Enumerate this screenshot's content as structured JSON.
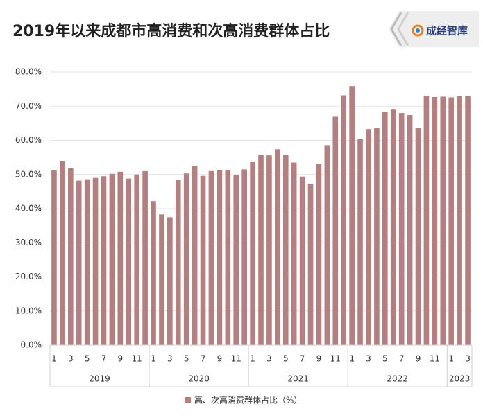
{
  "brand": "成经智库",
  "chart_data": {
    "type": "bar",
    "title": "2019年以来成都市高消费和次高消费群体占比",
    "categories": [
      "1",
      null,
      "3",
      null,
      "5",
      null,
      "7",
      null,
      "9",
      null,
      "11",
      null,
      "1",
      null,
      "3",
      null,
      "5",
      null,
      "7",
      null,
      "9",
      null,
      "11",
      null,
      "1",
      null,
      "3",
      null,
      "5",
      null,
      "7",
      null,
      "9",
      null,
      "11",
      null,
      "1",
      null,
      "3",
      null,
      "5",
      null,
      "7",
      null,
      "9",
      null,
      "11",
      null,
      "1",
      null,
      "3"
    ],
    "group_labels": [
      "2019",
      "2020",
      "2021",
      "2022",
      "2023"
    ],
    "group_sizes": [
      12,
      12,
      12,
      12,
      3
    ],
    "series": [
      {
        "name": "高、次高消费群体占比（%）",
        "color": "#b47f7e",
        "values": [
          51.2,
          53.8,
          51.8,
          48.2,
          48.6,
          49.0,
          49.5,
          50.2,
          50.8,
          48.8,
          50.0,
          51.0,
          42.2,
          38.3,
          37.5,
          48.5,
          50.3,
          52.4,
          49.6,
          51.0,
          51.2,
          51.3,
          49.9,
          51.5,
          53.6,
          55.8,
          55.6,
          57.4,
          55.7,
          53.5,
          49.4,
          47.3,
          53.0,
          58.6,
          66.9,
          73.2,
          75.9,
          60.4,
          63.3,
          63.7,
          68.3,
          69.2,
          68.0,
          67.4,
          63.6,
          73.1,
          72.7,
          72.8,
          72.6,
          72.9,
          72.9
        ]
      }
    ],
    "ylim": [
      0,
      80
    ],
    "yticks": [
      {
        "value": 0,
        "label": "0.0%"
      },
      {
        "value": 10,
        "label": "10.0%"
      },
      {
        "value": 20,
        "label": "20.0%"
      },
      {
        "value": 30,
        "label": "30.0%"
      },
      {
        "value": 40,
        "label": "40.0%"
      },
      {
        "value": 50,
        "label": "50.0%"
      },
      {
        "value": 60,
        "label": "60.0%"
      },
      {
        "value": 70,
        "label": "70.0%"
      },
      {
        "value": 80,
        "label": "80.0%"
      }
    ],
    "grid": true
  }
}
